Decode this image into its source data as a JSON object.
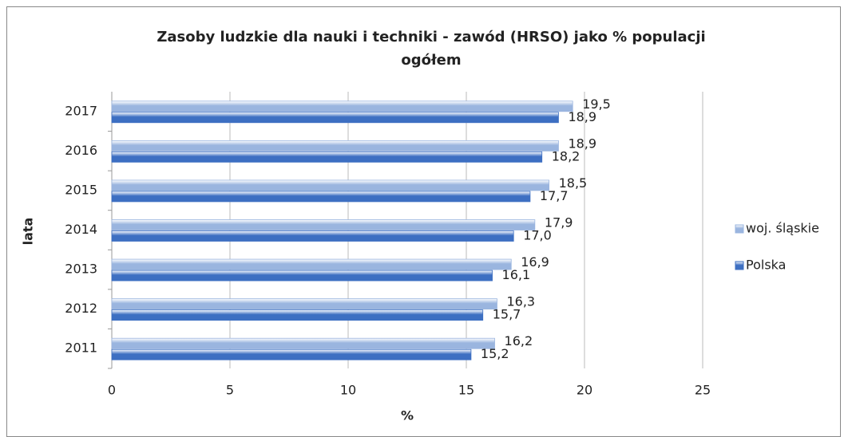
{
  "chart_data": {
    "type": "bar",
    "orientation": "horizontal",
    "title": [
      "Zasoby ludzkie dla nauki i techniki - zawód  (HRSO) jako % populacji",
      "ogółem"
    ],
    "xlabel": "%",
    "ylabel": "lata",
    "categories": [
      "2011",
      "2012",
      "2013",
      "2014",
      "2015",
      "2016",
      "2017"
    ],
    "series": [
      {
        "name": "woj. śląskie",
        "color": "#9ab5df",
        "values": [
          16.2,
          16.3,
          16.9,
          17.9,
          18.5,
          18.9,
          19.5
        ],
        "value_labels": [
          "16,2",
          "16,3",
          "16,9",
          "17,9",
          "18,5",
          "18,9",
          "19,5"
        ]
      },
      {
        "name": "Polska",
        "color": "#3d6fc2",
        "values": [
          15.2,
          15.7,
          16.1,
          17.0,
          17.7,
          18.2,
          18.9
        ],
        "value_labels": [
          "15,2",
          "15,7",
          "16,1",
          "17,0",
          "17,7",
          "18,2",
          "18,9"
        ]
      }
    ],
    "xlim": [
      0,
      25
    ],
    "xticks": [
      0,
      5,
      10,
      15,
      20,
      25
    ],
    "grid": true,
    "legend": "right"
  }
}
